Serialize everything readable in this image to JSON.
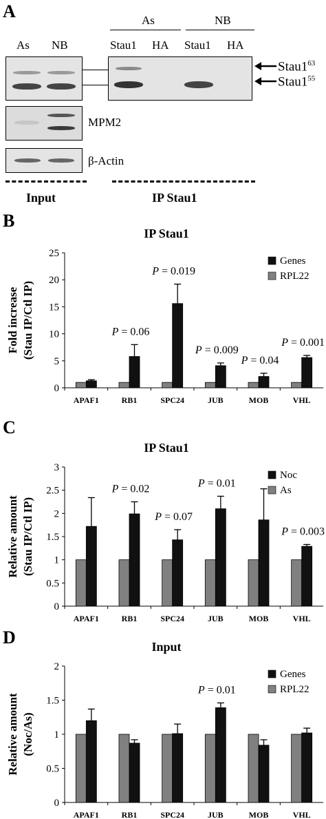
{
  "panel_a": {
    "letter": "A",
    "input_lanes": [
      "As",
      "NB"
    ],
    "ip_groups": [
      "As",
      "NB"
    ],
    "ip_lanes": [
      "Stau1",
      "HA",
      "Stau1",
      "HA"
    ],
    "band_labels": [
      {
        "name": "Stau1",
        "sup": "63"
      },
      {
        "name": "Stau1",
        "sup": "55"
      }
    ],
    "mpm2_label": "MPM2",
    "actin_label": "β-Actin",
    "input_caption": "Input",
    "ip_caption": "IP Stau1"
  },
  "chart_data": [
    {
      "letter": "B",
      "type": "bar",
      "title": "IP Stau1",
      "ylabel_line1": "Fold increase",
      "ylabel_line2": "(Stau IP/Ctl IP)",
      "ylim": [
        0,
        25
      ],
      "yticks": [
        "0",
        "5",
        "10",
        "15",
        "20",
        "25"
      ],
      "categories": [
        "APAF1",
        "RB1",
        "SPC24",
        "JUB",
        "MOB",
        "VHL"
      ],
      "series": [
        {
          "name": "RPL22",
          "color": "#808080",
          "values": [
            1,
            1,
            1,
            1,
            1,
            1
          ],
          "errors": [
            0,
            0,
            0,
            0,
            0,
            0
          ]
        },
        {
          "name": "Genes",
          "color": "#111111",
          "values": [
            1.3,
            5.8,
            15.6,
            4.1,
            2.1,
            5.6
          ],
          "errors": [
            0.2,
            2.2,
            3.6,
            0.5,
            0.6,
            0.4
          ]
        }
      ],
      "pvalues": [
        "",
        "0.06",
        "0.019",
        "0.009",
        "0.04",
        "0.001"
      ],
      "legend": [
        "Genes",
        "RPL22"
      ],
      "grid": false,
      "legend_position": "top-right"
    },
    {
      "letter": "C",
      "type": "bar",
      "title": "IP Stau1",
      "ylabel_line1": "Relative amount",
      "ylabel_line2": "(Stau IP/Ctl IP)",
      "ylim": [
        0,
        3
      ],
      "yticks": [
        "0",
        "0.5",
        "1",
        "1.5",
        "2",
        "2.5",
        "3"
      ],
      "categories": [
        "APAF1",
        "RB1",
        "SPC24",
        "JUB",
        "MOB",
        "VHL"
      ],
      "series": [
        {
          "name": "As",
          "color": "#808080",
          "values": [
            1,
            1,
            1,
            1,
            1,
            1
          ],
          "errors": [
            0,
            0,
            0,
            0,
            0,
            0
          ]
        },
        {
          "name": "Noc",
          "color": "#111111",
          "values": [
            1.72,
            1.99,
            1.43,
            2.1,
            1.86,
            1.29
          ],
          "errors": [
            0.62,
            0.26,
            0.22,
            0.27,
            0.67,
            0.04
          ]
        }
      ],
      "pvalues": [
        "",
        "0.02",
        "0.07",
        "0.01",
        "",
        "0.003"
      ],
      "legend": [
        "Noc",
        "As"
      ],
      "grid": false,
      "legend_position": "top-right"
    },
    {
      "letter": "D",
      "type": "bar",
      "title": "Input",
      "ylabel_line1": "Relative amount",
      "ylabel_line2": "(Noc/As)",
      "ylim": [
        0,
        2
      ],
      "yticks": [
        "0",
        "0.5",
        "1",
        "1.5",
        "2"
      ],
      "categories": [
        "APAF1",
        "RB1",
        "SPC24",
        "JUB",
        "MOB",
        "VHL"
      ],
      "series": [
        {
          "name": "RPL22",
          "color": "#808080",
          "values": [
            1,
            1,
            1,
            1,
            1,
            1
          ],
          "errors": [
            0,
            0,
            0,
            0,
            0,
            0
          ]
        },
        {
          "name": "Genes",
          "color": "#111111",
          "values": [
            1.2,
            0.87,
            1.01,
            1.39,
            0.84,
            1.02
          ],
          "errors": [
            0.17,
            0.05,
            0.14,
            0.07,
            0.08,
            0.07
          ]
        }
      ],
      "pvalues": [
        "",
        "",
        "",
        "0.01",
        "",
        ""
      ],
      "legend": [
        "Genes",
        "RPL22"
      ],
      "grid": false,
      "legend_position": "top-right"
    }
  ]
}
